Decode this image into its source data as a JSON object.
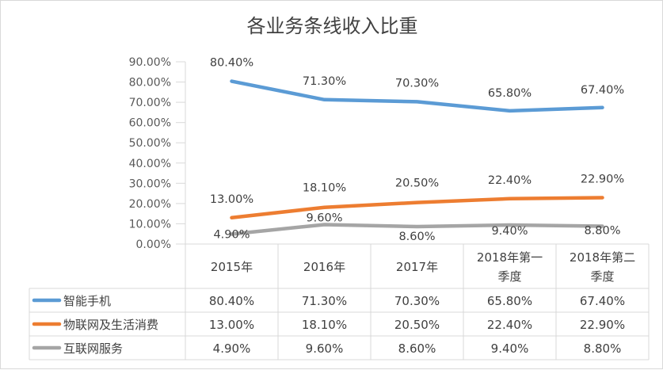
{
  "chart_data": {
    "type": "line",
    "title": "各业务条线收入比重",
    "categories": [
      "2015年",
      "2016年",
      "2017年",
      "2018年第一季度",
      "2018年第二季度"
    ],
    "category_lines": [
      [
        "2015年"
      ],
      [
        "2016年"
      ],
      [
        "2017年"
      ],
      [
        "2018年第一",
        "季度"
      ],
      [
        "2018年第二",
        "季度"
      ]
    ],
    "y_ticks": [
      "0.00%",
      "10.00%",
      "20.00%",
      "30.00%",
      "40.00%",
      "50.00%",
      "60.00%",
      "70.00%",
      "80.00%",
      "90.00%"
    ],
    "ylim": [
      0,
      90
    ],
    "series": [
      {
        "name": "智能手机",
        "color": "#5b9bd5",
        "values": [
          80.4,
          71.3,
          70.3,
          65.8,
          67.4
        ],
        "labels": [
          "80.40%",
          "71.30%",
          "70.30%",
          "65.80%",
          "67.40%"
        ]
      },
      {
        "name": "物联网及生活消费",
        "color": "#ed7d31",
        "values": [
          13.0,
          18.1,
          20.5,
          22.4,
          22.9
        ],
        "labels": [
          "13.00%",
          "18.10%",
          "20.50%",
          "22.40%",
          "22.90%"
        ]
      },
      {
        "name": "互联网服务",
        "color": "#a5a5a5",
        "values": [
          4.9,
          9.6,
          8.6,
          9.4,
          8.8
        ],
        "labels": [
          "4.90%",
          "9.60%",
          "8.60%",
          "9.40%",
          "8.80%"
        ]
      }
    ],
    "legend_position": "data-table",
    "grid": false
  }
}
